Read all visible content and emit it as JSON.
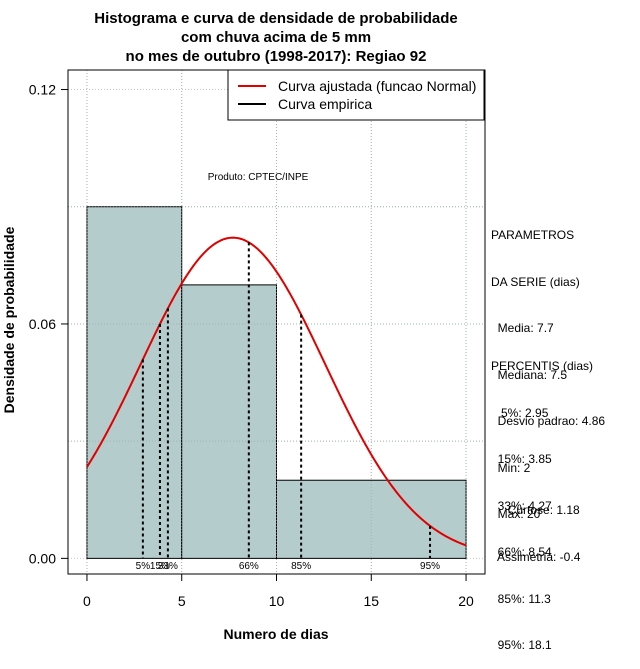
{
  "chart_data": {
    "type": "histogram",
    "title": [
      "Histograma e curva de densidade de probabilidade",
      "com chuva acima de 5 mm",
      "no mes de outubro (1998-2017): Regiao 92"
    ],
    "xlabel": "Numero de dias",
    "ylabel": "Densidade de probabilidade",
    "xlim": [
      -1,
      21
    ],
    "ylim": [
      -0.004,
      0.125
    ],
    "xticks": [
      0,
      5,
      10,
      15,
      20
    ],
    "xtick_labels": [
      "0",
      "5",
      "10",
      "15",
      "20"
    ],
    "yticks": [
      0.0,
      0.06,
      0.12
    ],
    "ytick_labels": [
      "0.00",
      "0.06",
      "0.12"
    ],
    "grid": true,
    "bins": [
      {
        "x0": 0,
        "x1": 5,
        "density": 0.09
      },
      {
        "x0": 5,
        "x1": 10,
        "density": 0.07
      },
      {
        "x0": 10,
        "x1": 20,
        "density": 0.02
      }
    ],
    "normal_curve": {
      "mean": 7.7,
      "sd": 4.86,
      "from": 0,
      "to": 20,
      "color": "#e00000"
    },
    "empirical_color": "#000000",
    "bar_color": "#b5cccc",
    "legend": {
      "position": "top-right",
      "entries": [
        {
          "label": "Curva ajustada (funcao Normal)",
          "color": "#e00000"
        },
        {
          "label": "Curva empirica",
          "color": "#000000"
        }
      ]
    },
    "annotation": "Produto: CPTEC/INPE",
    "percentile_markers": [
      {
        "x": 2.95,
        "label": "5%"
      },
      {
        "x": 3.85,
        "label": "15%"
      },
      {
        "x": 4.27,
        "label": "33%"
      },
      {
        "x": 8.54,
        "label": "66%"
      },
      {
        "x": 11.3,
        "label": "85%"
      },
      {
        "x": 18.1,
        "label": "95%"
      }
    ]
  },
  "side_panel": {
    "params_title_1": "PARAMETROS",
    "params_title_2": "DA SERIE (dias)",
    "media": "  Media: 7.7",
    "mediana": "  Mediana: 7.5",
    "desvio": "  Desvio padrao: 4.86",
    "min": "  Min: 2",
    "max": "  Max: 20",
    "percentis_title": "PERCENTIS (dias)",
    "p5": "   5%: 2.95",
    "p15": "  15%: 3.85",
    "p33": "  33%: 4.27",
    "p66": "  66%: 8.54",
    "p85": "  85%: 11.3",
    "p95": "  95%: 18.1",
    "curtose": "     Curtose: 1.18",
    "assimetria": "  Assimetria: -0.4"
  }
}
